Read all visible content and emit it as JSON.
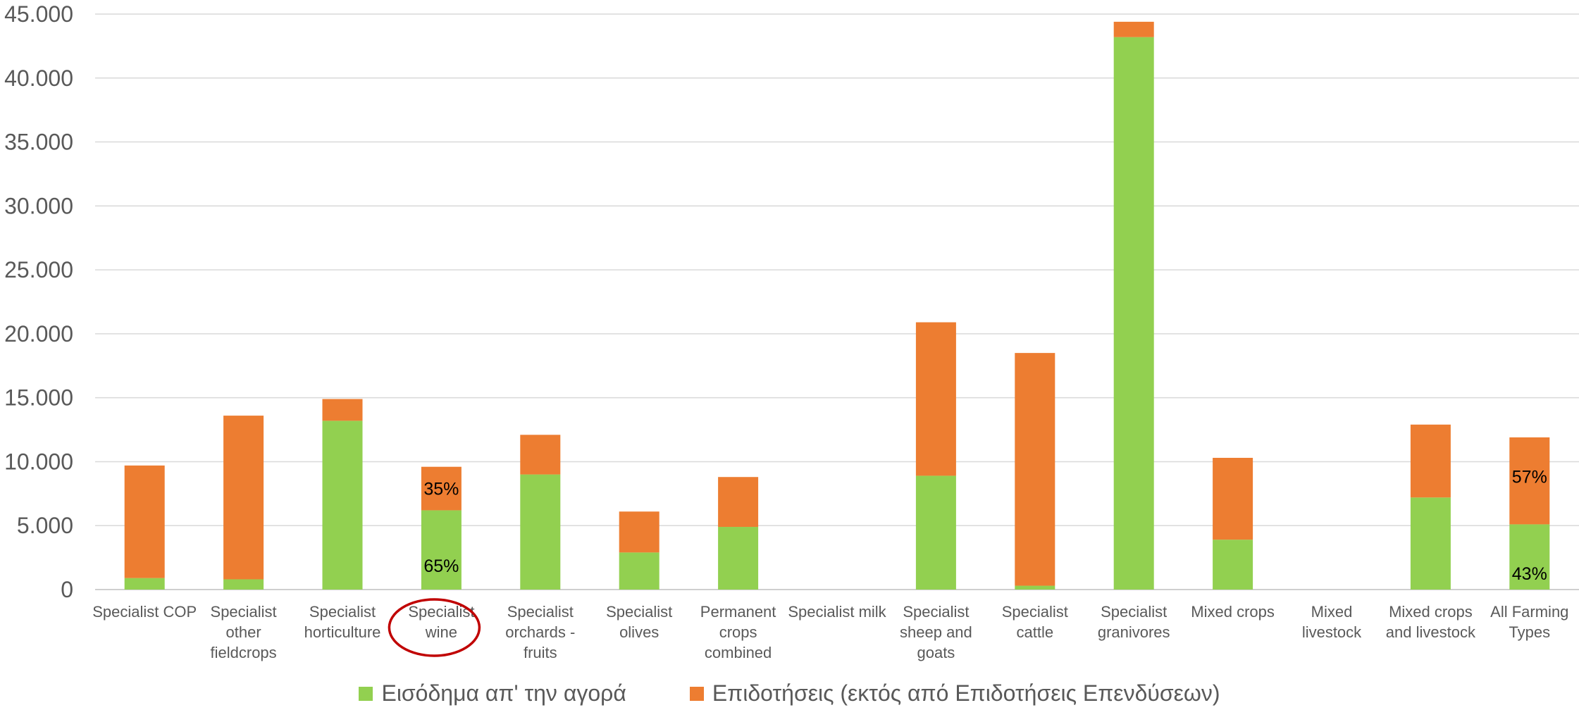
{
  "colors": {
    "market": "#92d050",
    "subsidies": "#ed7d31",
    "grid": "#d9d9d9",
    "highlight": "#c00000",
    "text": "#595959"
  },
  "legend": {
    "market": "Εισόδημα απ' την αγορά",
    "subsidies": "Επιδοτήσεις (εκτός από Επιδοτήσεις Επενδύσεων)"
  },
  "chart_data": {
    "type": "bar",
    "stacked": true,
    "ylim": [
      0,
      45000
    ],
    "yticks": [
      "0",
      "5.000",
      "10.000",
      "15.000",
      "20.000",
      "25.000",
      "30.000",
      "35.000",
      "40.000",
      "45.000"
    ],
    "grid": true,
    "legend_position": "bottom",
    "categories": [
      [
        "Specialist COP"
      ],
      [
        "Specialist",
        "other",
        "fieldcrops"
      ],
      [
        "Specialist",
        "horticulture"
      ],
      [
        "Specialist",
        "wine"
      ],
      [
        "Specialist",
        "orchards -",
        "fruits"
      ],
      [
        "Specialist",
        "olives"
      ],
      [
        "Permanent",
        "crops",
        "combined"
      ],
      [
        "Specialist milk"
      ],
      [
        "Specialist",
        "sheep and",
        "goats"
      ],
      [
        "Specialist",
        "cattle"
      ],
      [
        "Specialist",
        "granivores"
      ],
      [
        "Mixed crops"
      ],
      [
        "Mixed",
        "livestock"
      ],
      [
        "Mixed crops",
        "and livestock"
      ],
      [
        "All Farming",
        "Types"
      ]
    ],
    "series": [
      {
        "name": "Εισόδημα απ' την αγορά",
        "values": [
          900,
          800,
          13200,
          6200,
          9000,
          2900,
          4900,
          0,
          8900,
          300,
          43200,
          3900,
          0,
          7200,
          5100
        ]
      },
      {
        "name": "Επιδοτήσεις (εκτός από Επιδοτήσεις Επενδύσεων)",
        "values": [
          8800,
          12800,
          1700,
          3400,
          3100,
          3200,
          3900,
          0,
          12000,
          18200,
          1200,
          6400,
          0,
          5700,
          6800
        ]
      }
    ],
    "annotations": [
      {
        "category_index": 3,
        "series_index": 1,
        "text": "35%"
      },
      {
        "category_index": 3,
        "series_index": 0,
        "text": "65%"
      },
      {
        "category_index": 14,
        "series_index": 1,
        "text": "57%"
      },
      {
        "category_index": 14,
        "series_index": 0,
        "text": "43%"
      }
    ],
    "highlight_category_index": 3
  }
}
